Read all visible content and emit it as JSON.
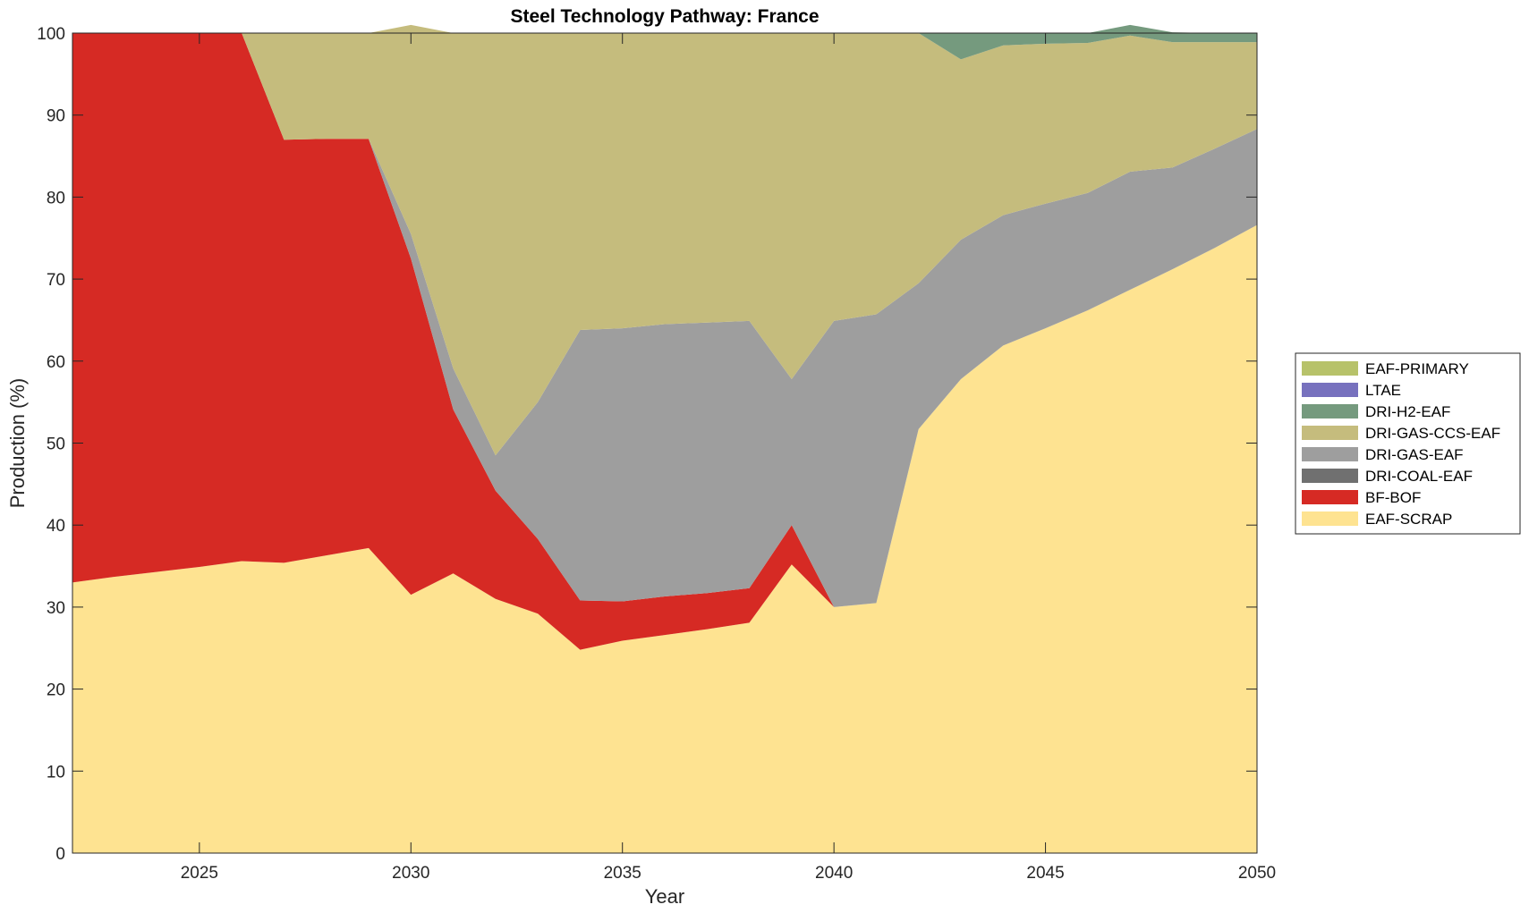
{
  "chart_data": {
    "type": "area",
    "stacked": true,
    "title": "Steel Technology Pathway: France",
    "xlabel": "Year",
    "ylabel": "Production (%)",
    "xlim": [
      2022,
      2050
    ],
    "ylim": [
      0,
      100
    ],
    "xticks": [
      2025,
      2030,
      2035,
      2040,
      2045,
      2050
    ],
    "yticks": [
      0,
      10,
      20,
      30,
      40,
      50,
      60,
      70,
      80,
      90,
      100
    ],
    "grid": false,
    "legend_position": "outside-right",
    "x": [
      2022,
      2023,
      2024,
      2025,
      2026,
      2027,
      2028,
      2029,
      2030,
      2031,
      2032,
      2033,
      2034,
      2035,
      2036,
      2037,
      2038,
      2039,
      2040,
      2041,
      2042,
      2043,
      2044,
      2045,
      2046,
      2047,
      2048,
      2049,
      2050
    ],
    "series": [
      {
        "name": "EAF-SCRAP",
        "color": "#FEE391",
        "values": [
          33,
          33.7,
          34.3,
          34.9,
          35.6,
          35.4,
          36.3,
          37.2,
          31.5,
          34.1,
          31.0,
          29.2,
          24.8,
          25.9,
          26.6,
          27.3,
          28.1,
          35.2,
          30.0,
          30.5,
          51.7,
          57.8,
          61.9,
          64.0,
          66.2,
          68.7,
          71.2,
          73.8,
          76.6
        ]
      },
      {
        "name": "BF-BOF",
        "color": "#D62A24",
        "values": [
          67,
          66.3,
          65.7,
          65.1,
          64.4,
          51.6,
          50.8,
          49.9,
          41.0,
          20.0,
          13.2,
          9.1,
          6.0,
          4.8,
          4.7,
          4.4,
          4.2,
          4.8,
          0,
          0,
          0,
          0,
          0,
          0,
          0,
          0,
          0,
          0,
          0
        ]
      },
      {
        "name": "DRI-COAL-EAF",
        "color": "#707070",
        "values": [
          0,
          0,
          0,
          0,
          0,
          0,
          0,
          0,
          0,
          0,
          0,
          0,
          0,
          0,
          0,
          0,
          0,
          0,
          0,
          0,
          0,
          0,
          0,
          0,
          0,
          0,
          0,
          0,
          0
        ]
      },
      {
        "name": "DRI-GAS-EAF",
        "color": "#9E9E9E",
        "values": [
          0,
          0,
          0,
          0,
          0,
          0,
          0,
          0,
          3.0,
          5.0,
          4.3,
          16.7,
          33.0,
          33.3,
          33.2,
          33.0,
          32.6,
          17.8,
          34.9,
          35.2,
          17.8,
          17.0,
          15.9,
          15.2,
          14.3,
          14.4,
          12.4,
          12.1,
          11.7
        ]
      },
      {
        "name": "DRI-GAS-CCS-EAF",
        "color": "#C5BC7D",
        "values": [
          0,
          0,
          0,
          0,
          0,
          13.0,
          12.9,
          12.9,
          25.5,
          40.9,
          51.5,
          45.0,
          36.2,
          36.0,
          35.5,
          35.3,
          35.1,
          42.2,
          35.1,
          34.3,
          30.5,
          22.0,
          20.7,
          19.5,
          18.3,
          16.6,
          15.3,
          13.0,
          10.6
        ]
      },
      {
        "name": "DRI-H2-EAF",
        "color": "#759A7E",
        "values": [
          0,
          0,
          0,
          0,
          0,
          0,
          0,
          0,
          0,
          0,
          0,
          0,
          0,
          0,
          0,
          0,
          0,
          0,
          0,
          0,
          0,
          3.2,
          1.5,
          1.3,
          1.2,
          1.3,
          1.2,
          1.1,
          1.1
        ]
      },
      {
        "name": "LTAE",
        "color": "#7771BE",
        "values": [
          0,
          0,
          0,
          0,
          0,
          0,
          0,
          0,
          0,
          0,
          0,
          0,
          0,
          0,
          0,
          0,
          0,
          0,
          0,
          0,
          0,
          0,
          0,
          0,
          0,
          0,
          0,
          0,
          0
        ]
      },
      {
        "name": "EAF-PRIMARY",
        "color": "#B7C26A",
        "values": [
          0,
          0,
          0,
          0,
          0,
          0,
          0,
          0,
          0,
          0,
          0,
          0,
          0,
          0,
          0,
          0,
          0,
          0,
          0,
          0,
          0,
          0,
          0,
          0,
          0,
          0,
          0,
          0,
          0
        ]
      }
    ],
    "legend_order": [
      "EAF-PRIMARY",
      "LTAE",
      "DRI-H2-EAF",
      "DRI-GAS-CCS-EAF",
      "DRI-GAS-EAF",
      "DRI-COAL-EAF",
      "BF-BOF",
      "EAF-SCRAP"
    ]
  }
}
